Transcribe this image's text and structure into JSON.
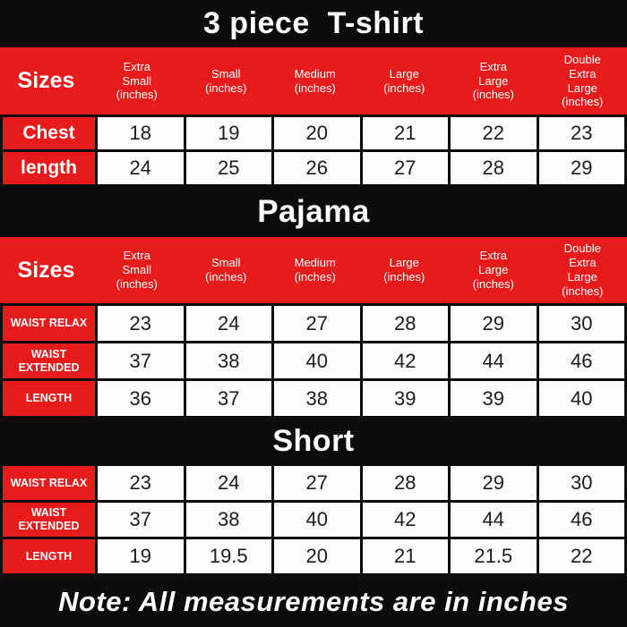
{
  "colors": {
    "accent_red": "#e71b1b",
    "band_black": "#0c0c0c",
    "cell_white": "#fdfdfd",
    "cell_text": "#1c1c1c"
  },
  "header_columns": {
    "label": "Sizes",
    "cols": [
      "Extra\nSmall\n(inches)",
      "Small\n(inches)",
      "Medium\n(inches)",
      "Large\n(inches)",
      "Extra\nLarge\n(inches)",
      "Double\nExtra\nLarge\n(inches)"
    ]
  },
  "sections": {
    "tshirt": {
      "title": "3 piece  T-shirt",
      "rows": [
        {
          "label": "Chest",
          "values": [
            "18",
            "19",
            "20",
            "21",
            "22",
            "23"
          ]
        },
        {
          "label": "length",
          "values": [
            "24",
            "25",
            "26",
            "27",
            "28",
            "29"
          ]
        }
      ]
    },
    "pajama": {
      "title": "Pajama",
      "rows": [
        {
          "label": "WAIST RELAX",
          "values": [
            "23",
            "24",
            "27",
            "28",
            "29",
            "30"
          ]
        },
        {
          "label": "WAIST EXTENDED",
          "values": [
            "37",
            "38",
            "40",
            "42",
            "44",
            "46"
          ]
        },
        {
          "label": "LENGTH",
          "values": [
            "36",
            "37",
            "38",
            "39",
            "39",
            "40"
          ]
        }
      ]
    },
    "short": {
      "title": "Short",
      "rows": [
        {
          "label": "WAIST RELAX",
          "values": [
            "23",
            "24",
            "27",
            "28",
            "29",
            "30"
          ]
        },
        {
          "label": "WAIST EXTENDED",
          "values": [
            "37",
            "38",
            "40",
            "42",
            "44",
            "46"
          ]
        },
        {
          "label": "LENGTH",
          "values": [
            "19",
            "19.5",
            "20",
            "21",
            "21.5",
            "22"
          ]
        }
      ]
    }
  },
  "note": "Note: All measurements are in inches",
  "chart_data": [
    {
      "type": "table",
      "title": "3 piece  T-shirt",
      "columns": [
        "Sizes",
        "Extra Small (inches)",
        "Small (inches)",
        "Medium (inches)",
        "Large (inches)",
        "Extra Large (inches)",
        "Double Extra Large (inches)"
      ],
      "rows": [
        [
          "Chest",
          18,
          19,
          20,
          21,
          22,
          23
        ],
        [
          "length",
          24,
          25,
          26,
          27,
          28,
          29
        ]
      ]
    },
    {
      "type": "table",
      "title": "Pajama",
      "columns": [
        "Sizes",
        "Extra Small (inches)",
        "Small (inches)",
        "Medium (inches)",
        "Large (inches)",
        "Extra Large (inches)",
        "Double Extra Large (inches)"
      ],
      "rows": [
        [
          "WAIST RELAX",
          23,
          24,
          27,
          28,
          29,
          30
        ],
        [
          "WAIST EXTENDED",
          37,
          38,
          40,
          42,
          44,
          46
        ],
        [
          "LENGTH",
          36,
          37,
          38,
          39,
          39,
          40
        ]
      ]
    },
    {
      "type": "table",
      "title": "Short",
      "columns": [],
      "rows": [
        [
          "WAIST RELAX",
          23,
          24,
          27,
          28,
          29,
          30
        ],
        [
          "WAIST EXTENDED",
          37,
          38,
          40,
          42,
          44,
          46
        ],
        [
          "LENGTH",
          19,
          19.5,
          20,
          21,
          21.5,
          22
        ]
      ]
    }
  ]
}
